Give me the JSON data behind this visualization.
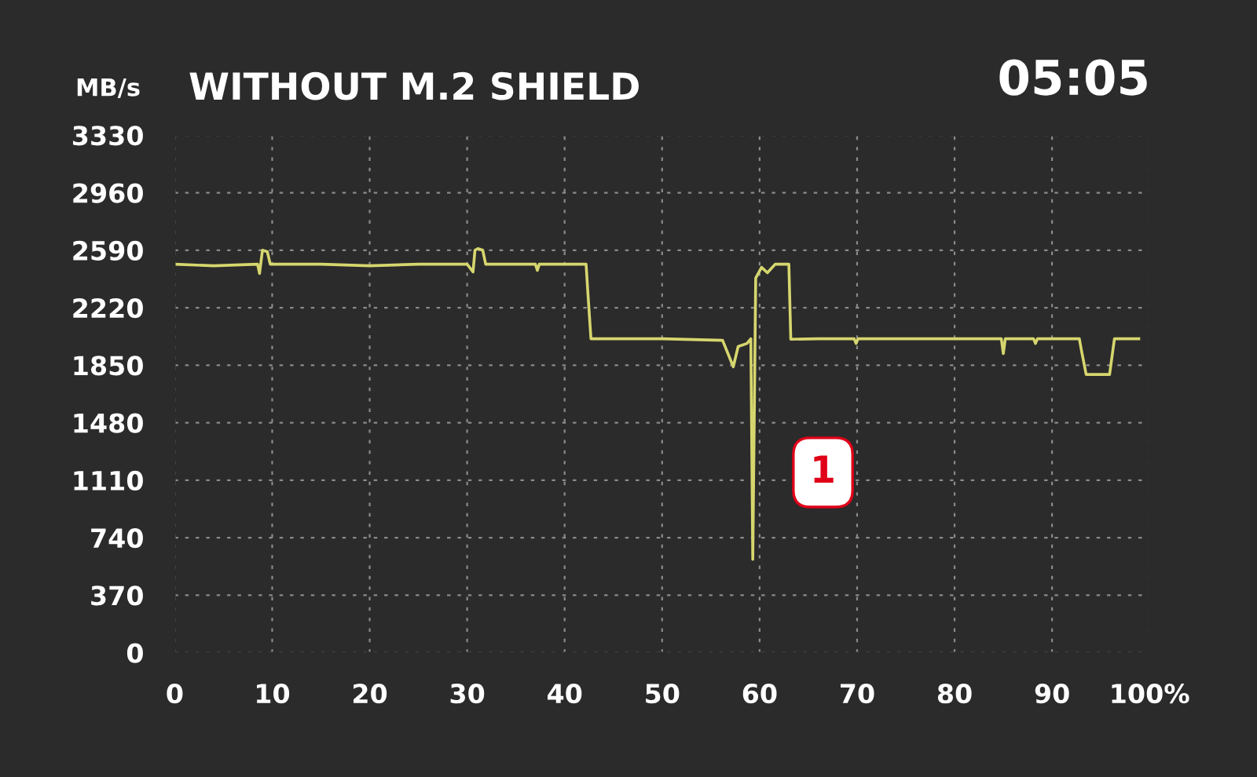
{
  "chart_data": {
    "type": "line",
    "title": "WITHOUT M.2 SHIELD",
    "ylabel": "MB/s",
    "annotations": [
      "05:05",
      "1"
    ],
    "x": [
      0,
      4,
      8.5,
      8.7,
      9.0,
      9.5,
      9.8,
      15,
      20,
      25,
      30,
      30.6,
      30.8,
      31.1,
      31.6,
      31.9,
      35,
      37.0,
      37.2,
      37.4,
      40,
      42.2,
      42.4,
      42.7,
      45,
      50,
      56.2,
      57.3,
      57.8,
      58.7,
      59.1,
      59.3,
      59.6,
      60.2,
      60.8,
      61.6,
      63.0,
      63.2,
      66,
      69.7,
      69.9,
      70.1,
      75,
      80,
      84.8,
      85.0,
      85.2,
      88.1,
      88.3,
      88.5,
      92.8,
      93.0,
      93.5,
      95.9,
      96.4,
      98.9
    ],
    "series": [
      {
        "color": "#d6d66e",
        "values": [
          2500,
          2490,
          2500,
          2440,
          2590,
          2580,
          2500,
          2500,
          2490,
          2500,
          2500,
          2450,
          2590,
          2600,
          2590,
          2500,
          2500,
          2500,
          2460,
          2500,
          2500,
          2500,
          2300,
          2020,
          2020,
          2020,
          2010,
          1840,
          1970,
          1990,
          2020,
          600,
          2410,
          2480,
          2445,
          2500,
          2500,
          2017,
          2020,
          2020,
          1990,
          2020,
          2020,
          2020,
          2020,
          1925,
          2020,
          2020,
          1990,
          2020,
          2020,
          1950,
          1790,
          1790,
          2020,
          2020
        ]
      }
    ],
    "xlim": [
      0,
      100
    ],
    "ylim": [
      0,
      3330
    ],
    "xticks": [
      {
        "value": 0,
        "label": "0"
      },
      10,
      20,
      30,
      40,
      50,
      60,
      70,
      80,
      90,
      {
        "value": 100,
        "label": "100%"
      }
    ],
    "yticks": [
      0,
      370,
      740,
      1110,
      1480,
      1850,
      2220,
      2590,
      2960,
      3330
    ],
    "grid": true,
    "line_style": "solid",
    "marker": "none",
    "legend": false
  }
}
